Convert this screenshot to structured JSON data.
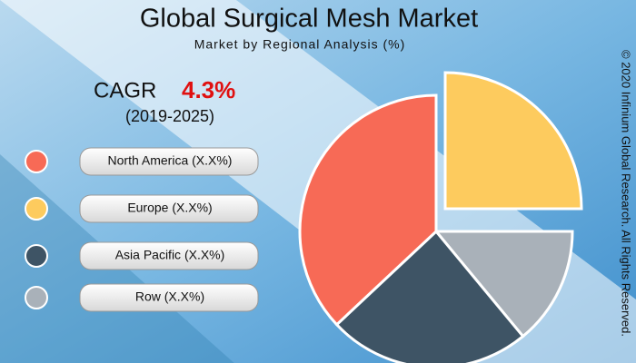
{
  "chart_data": {
    "type": "pie",
    "title": "Global Surgical Mesh Market",
    "subtitle": "Market by Regional Analysis (%)",
    "cagr_label": "CAGR",
    "cagr_value": "4.3%",
    "cagr_period": "(2019-2025)",
    "copyright": "© 2020 Infinium Global Research. All Rights Reserved.",
    "categories": [
      "Europe (X.X%)",
      "Row (X.X%)",
      "Asia Pacific (X.X%)",
      "North America (X.X%)"
    ],
    "values": [
      25,
      14,
      24,
      37
    ],
    "colors": [
      "#fdcb5e",
      "#a9b1b9",
      "#3e5465",
      "#f76a56"
    ]
  }
}
